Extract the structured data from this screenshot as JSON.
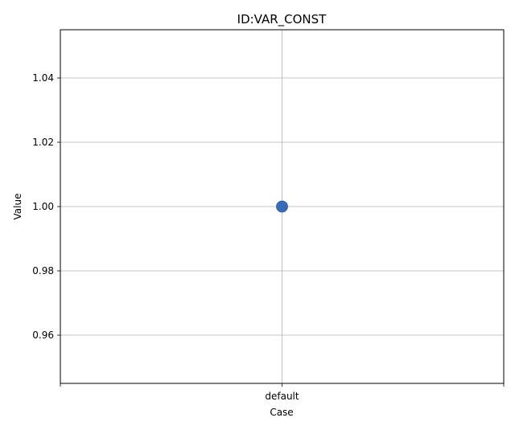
{
  "chart_data": {
    "type": "scatter",
    "title": "ID:VAR_CONST",
    "xlabel": "Case",
    "ylabel": "Value",
    "categories": [
      "default"
    ],
    "series": [
      {
        "values": [
          1.0
        ],
        "color": "#3a6cb5"
      }
    ],
    "ylim": [
      0.945,
      1.055
    ],
    "yticks": [
      0.96,
      0.98,
      1.0,
      1.02,
      1.04
    ],
    "ytick_labels": [
      "0.96",
      "0.98",
      "1.00",
      "1.02",
      "1.04"
    ],
    "grid": true
  }
}
